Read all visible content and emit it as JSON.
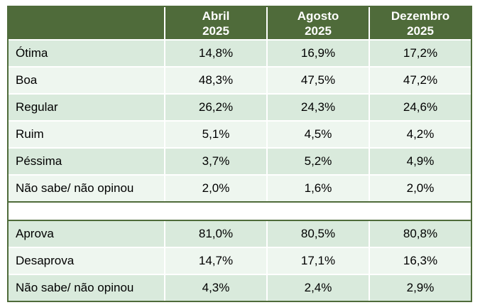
{
  "header": {
    "columns": [
      {
        "month": "Abril",
        "year": "2025"
      },
      {
        "month": "Agosto",
        "year": "2025"
      },
      {
        "month": "Dezembro",
        "year": "2025"
      }
    ]
  },
  "evaluation": [
    {
      "label": "Ótima",
      "values": [
        "14,8%",
        "16,9%",
        "17,2%"
      ]
    },
    {
      "label": "Boa",
      "values": [
        "48,3%",
        "47,5%",
        "47,2%"
      ]
    },
    {
      "label": "Regular",
      "values": [
        "26,2%",
        "24,3%",
        "24,6%"
      ]
    },
    {
      "label": "Ruim",
      "values": [
        "5,1%",
        "4,5%",
        "4,2%"
      ]
    },
    {
      "label": "Péssima",
      "values": [
        "3,7%",
        "5,2%",
        "4,9%"
      ]
    },
    {
      "label": "Não sabe/ não opinou",
      "values": [
        "2,0%",
        "1,6%",
        "2,0%"
      ]
    }
  ],
  "approval": [
    {
      "label": "Aprova",
      "values": [
        "81,0%",
        "80,5%",
        "80,8%"
      ]
    },
    {
      "label": "Desaprova",
      "values": [
        "14,7%",
        "17,1%",
        "16,3%"
      ]
    },
    {
      "label": "Não sabe/ não opinou",
      "values": [
        "4,3%",
        "2,4%",
        "2,9%"
      ]
    }
  ],
  "colors": {
    "header_bg": "#4f6b3a",
    "row_odd": "#d9eadc",
    "row_even": "#eef6ef"
  }
}
